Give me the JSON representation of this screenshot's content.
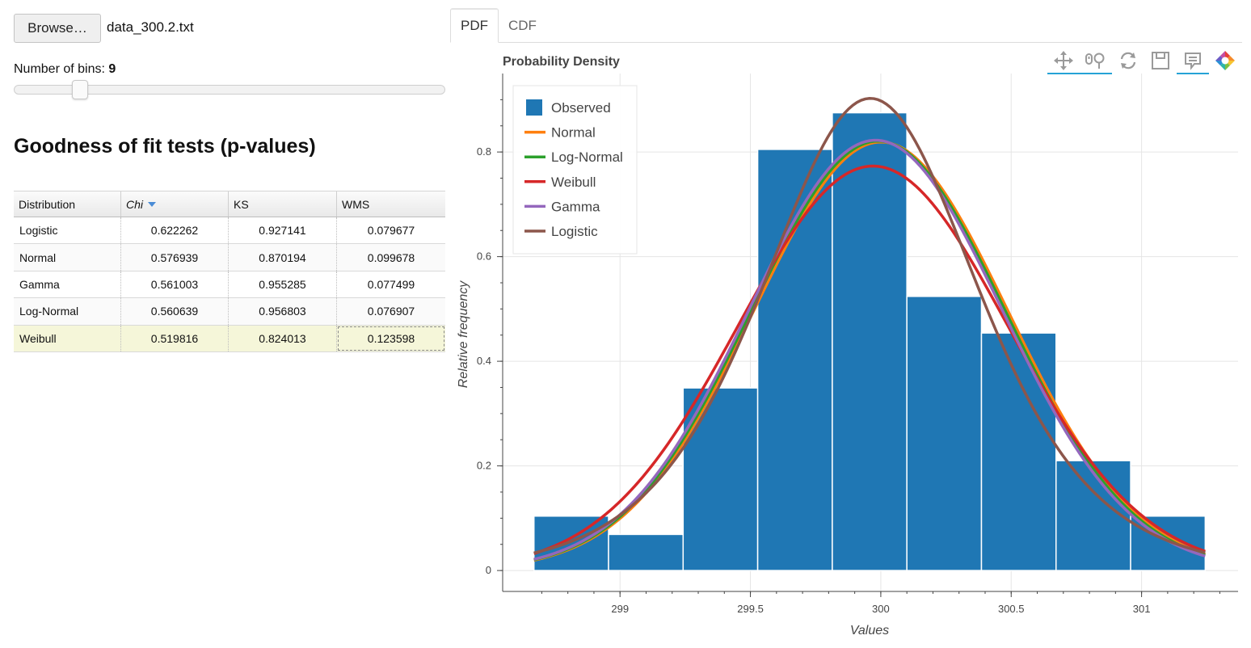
{
  "controls": {
    "browse_label": "Browse…",
    "file_name": "data_300.2.txt",
    "bins_label": "Number of bins:",
    "bins_value": "9",
    "bins_fraction": 0.14
  },
  "gof": {
    "title": "Goodness of fit tests (p-values)",
    "columns": [
      "Distribution",
      "Chi",
      "KS",
      "WMS"
    ],
    "sorted_column": "Chi",
    "rows": [
      {
        "name": "Logistic",
        "chi": "0.622262",
        "ks": "0.927141",
        "wms": "0.079677"
      },
      {
        "name": "Normal",
        "chi": "0.576939",
        "ks": "0.870194",
        "wms": "0.099678"
      },
      {
        "name": "Gamma",
        "chi": "0.561003",
        "ks": "0.955285",
        "wms": "0.077499"
      },
      {
        "name": "Log-Normal",
        "chi": "0.560639",
        "ks": "0.956803",
        "wms": "0.076907"
      },
      {
        "name": "Weibull",
        "chi": "0.519816",
        "ks": "0.824013",
        "wms": "0.123598"
      }
    ]
  },
  "tabs": [
    {
      "label": "PDF",
      "active": true
    },
    {
      "label": "CDF",
      "active": false
    }
  ],
  "toolbar": [
    {
      "name": "pan-icon",
      "active": true
    },
    {
      "name": "wheel-zoom-icon",
      "active": true
    },
    {
      "name": "reset-icon",
      "active": false
    },
    {
      "name": "save-icon",
      "active": false
    },
    {
      "name": "hover-icon",
      "active": true
    },
    {
      "name": "bokeh-logo-icon",
      "active": false
    }
  ],
  "chart_data": {
    "type": "bar",
    "title": "Probability Density",
    "xlabel": "Values",
    "ylabel": "Relative frequency",
    "xlim": [
      298.55,
      301.37
    ],
    "ylim": [
      -0.04,
      0.95
    ],
    "x_ticks": [
      299,
      299.5,
      300,
      300.5,
      301
    ],
    "x_tick_labels": [
      "299",
      "299.5",
      "300",
      "300.5",
      "301"
    ],
    "y_ticks": [
      0,
      0.2,
      0.4,
      0.6,
      0.8
    ],
    "y_tick_labels": [
      "0",
      "0.2",
      "0.4",
      "0.6",
      "0.8"
    ],
    "grid": true,
    "legend_position": "top-left",
    "histogram": {
      "name": "Observed",
      "color": "#1f77b4",
      "bin_edges": [
        298.67,
        298.956,
        299.242,
        299.528,
        299.814,
        300.1,
        300.386,
        300.672,
        300.958,
        301.244
      ],
      "values": [
        0.104,
        0.069,
        0.349,
        0.805,
        0.875,
        0.524,
        0.454,
        0.21,
        0.104
      ]
    },
    "curves": [
      {
        "name": "Normal",
        "color": "#ff7f0e",
        "dist": "normal",
        "mu": 300.0,
        "sigma": 0.487
      },
      {
        "name": "Log-Normal",
        "color": "#2ca02c",
        "dist": "normal",
        "mu": 299.99,
        "sigma": 0.486
      },
      {
        "name": "Weibull",
        "color": "#d62728",
        "dist": "normal",
        "mu": 299.97,
        "sigma": 0.516
      },
      {
        "name": "Gamma",
        "color": "#9467bd",
        "dist": "normal",
        "mu": 299.98,
        "sigma": 0.485
      },
      {
        "name": "Logistic",
        "color": "#8c564b",
        "dist": "logistic",
        "mu": 299.96,
        "s": 0.277
      }
    ]
  }
}
